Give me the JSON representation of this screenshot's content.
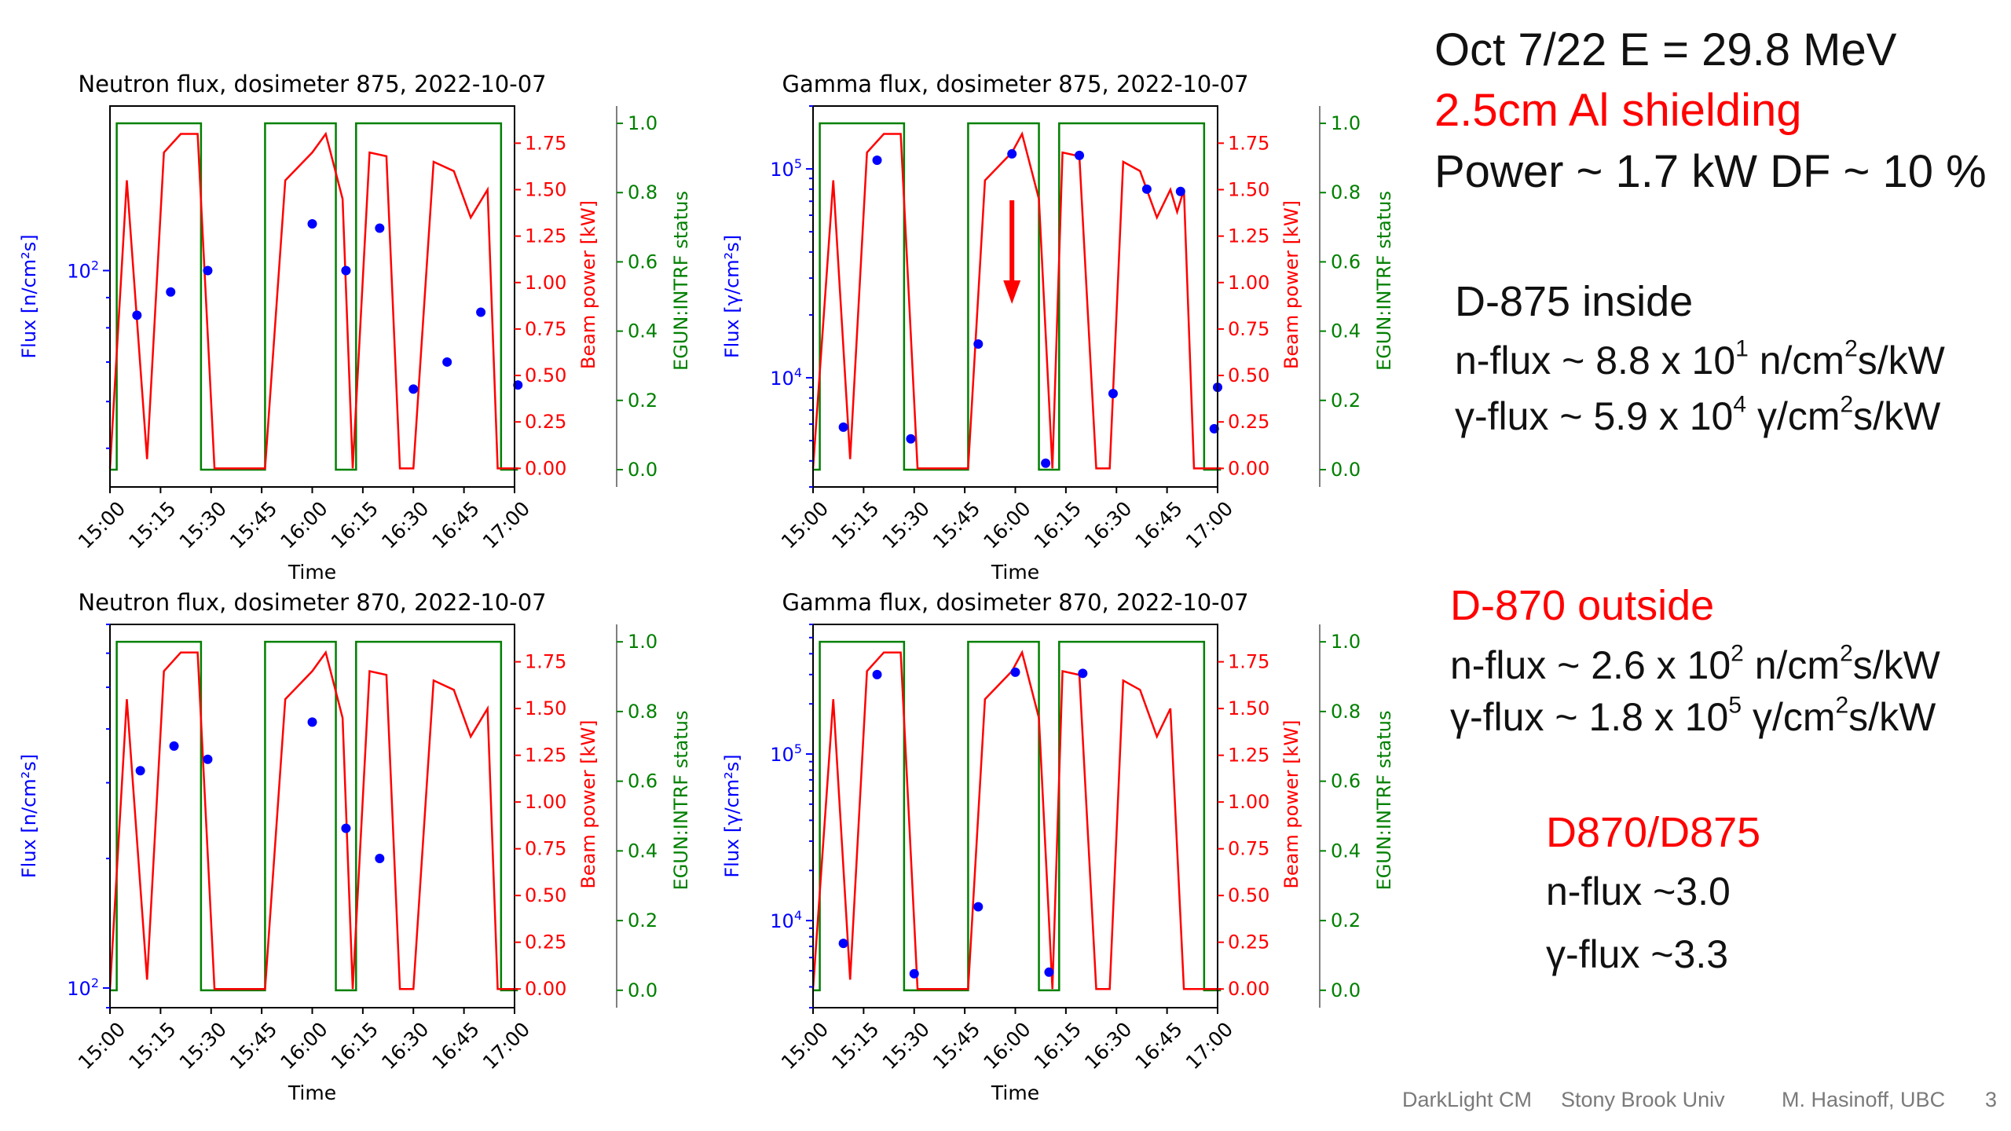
{
  "slide": {
    "header": {
      "date_energy": "Oct 7/22  E = 29.8 MeV",
      "shielding": "2.5cm Al shielding",
      "power_df": "Power ~ 1.7 kW   DF ~ 10 %"
    },
    "d875": {
      "heading": "D-875   inside",
      "n_flux": {
        "pre": "n-flux ~ 8.8 x 10",
        "exp": "1",
        "mid": " n/cm",
        "exp2": "2",
        "post": "s/kW"
      },
      "g_flux": {
        "pre": "γ-flux ~ 5.9 x 10",
        "exp": "4",
        "mid": " γ/cm",
        "exp2": "2",
        "post": "s/kW"
      }
    },
    "d870": {
      "heading": "D-870  outside",
      "n_flux": {
        "pre": "n-flux ~ 2.6 x 10",
        "exp": "2",
        "mid": " n/cm",
        "exp2": "2",
        "post": "s/kW"
      },
      "g_flux": {
        "pre": "γ-flux ~ 1.8 x 10",
        "exp": "5",
        "mid": " γ/cm",
        "exp2": "2",
        "post": "s/kW"
      }
    },
    "ratio": {
      "heading": "D870/D875",
      "n_flux": "n-flux ~3.0",
      "g_flux": "γ-flux ~3.3"
    },
    "footer": {
      "event": "DarkLight CM",
      "venue": "Stony Brook Univ",
      "author": "M. Hasinoff, UBC",
      "page": "3"
    },
    "colors": {
      "flux": "#0000ff",
      "power": "#ff0000",
      "status": "#008000",
      "accent": "#ff0000"
    }
  },
  "chart_data": [
    {
      "type": "line",
      "title": "Neutron flux, dosimeter 875, 2022-10-07",
      "xlabel": "Time",
      "ylabel_left": "Flux [n/cm²s]",
      "ylabel_right1": "Beam power [kW]",
      "ylabel_right2": "EGUN:INTRF status",
      "x_ticks": [
        "15:00",
        "15:15",
        "15:30",
        "15:45",
        "16:00",
        "16:15",
        "16:30",
        "16:45",
        "17:00"
      ],
      "y_left_log": true,
      "y_left_range": [
        43,
        190
      ],
      "y_left_ticks": [
        {
          "value": 100,
          "base": "10",
          "exp": "2"
        }
      ],
      "y_power_range": [
        -0.1,
        1.95
      ],
      "y_power_ticks": [
        "0.00",
        "0.25",
        "0.50",
        "0.75",
        "1.00",
        "1.25",
        "1.50",
        "1.75"
      ],
      "y_status_range": [
        -0.05,
        1.05
      ],
      "y_status_ticks": [
        "0.0",
        "0.2",
        "0.4",
        "0.6",
        "0.8",
        "1.0"
      ],
      "series": [
        {
          "name": "Flux",
          "kind": "scatter",
          "x": [
            8,
            18,
            29,
            60,
            70,
            80,
            90,
            100,
            110,
            121
          ],
          "y": [
            84,
            92,
            100,
            120,
            100,
            118,
            63,
            70,
            85,
            64
          ]
        },
        {
          "name": "Beam power",
          "kind": "line",
          "x": [
            0,
            5,
            11,
            16,
            21,
            26,
            31,
            46,
            52,
            60,
            64,
            69,
            72,
            77,
            82,
            86,
            90,
            96,
            102,
            107,
            112,
            115,
            118,
            121
          ],
          "y": [
            0.0,
            1.55,
            0.05,
            1.7,
            1.8,
            1.8,
            0.0,
            0.0,
            1.55,
            1.7,
            1.8,
            1.45,
            0.0,
            1.7,
            1.68,
            0.0,
            0.0,
            1.65,
            1.6,
            1.35,
            1.5,
            0.0,
            0.0,
            0.0
          ]
        },
        {
          "name": "EGUN:INTRF status",
          "kind": "step",
          "x": [
            0,
            2,
            2,
            27,
            27,
            46,
            46,
            67,
            67,
            73,
            73,
            116,
            116,
            121
          ],
          "y": [
            0,
            0,
            1,
            1,
            0,
            0,
            1,
            1,
            0,
            0,
            1,
            1,
            0,
            0
          ]
        }
      ]
    },
    {
      "type": "line",
      "title": "Gamma flux, dosimeter 875, 2022-10-07",
      "xlabel": "Time",
      "ylabel_left": "Flux [γ/cm²s]",
      "ylabel_right1": "Beam power [kW]",
      "ylabel_right2": "EGUN:INTRF status",
      "x_ticks": [
        "15:00",
        "15:15",
        "15:30",
        "15:45",
        "16:00",
        "16:15",
        "16:30",
        "16:45",
        "17:00"
      ],
      "y_left_log": true,
      "y_left_range": [
        3000,
        200000
      ],
      "y_left_ticks": [
        {
          "value": 10000,
          "base": "10",
          "exp": "4"
        },
        {
          "value": 100000,
          "base": "10",
          "exp": "5"
        }
      ],
      "y_power_range": [
        -0.1,
        1.95
      ],
      "y_power_ticks": [
        "0.00",
        "0.25",
        "0.50",
        "0.75",
        "1.00",
        "1.25",
        "1.50",
        "1.75"
      ],
      "y_status_range": [
        -0.05,
        1.05
      ],
      "y_status_ticks": [
        "0.0",
        "0.2",
        "0.4",
        "0.6",
        "0.8",
        "1.0"
      ],
      "annotation": "red down arrow at 16:00",
      "series": [
        {
          "name": "Flux",
          "kind": "scatter",
          "x": [
            9,
            19,
            29,
            49,
            59,
            69,
            79,
            89,
            99,
            109,
            119,
            120
          ],
          "y": [
            5800,
            110000,
            5100,
            14500,
            118000,
            3900,
            116000,
            8400,
            80000,
            78000,
            5700,
            9000
          ]
        },
        {
          "name": "Beam power",
          "kind": "line",
          "x": [
            0,
            6,
            11,
            16,
            21,
            26,
            31,
            46,
            51,
            59,
            62,
            67,
            71,
            74,
            79,
            84,
            88,
            92,
            97,
            102,
            106,
            108,
            110,
            113,
            117,
            121
          ],
          "y": [
            0.0,
            1.55,
            0.05,
            1.7,
            1.8,
            1.8,
            0.0,
            0.0,
            1.55,
            1.7,
            1.8,
            1.45,
            0.0,
            1.7,
            1.68,
            0.0,
            0.0,
            1.65,
            1.6,
            1.35,
            1.5,
            1.38,
            1.5,
            0.0,
            0.0,
            0.0
          ]
        },
        {
          "name": "EGUN:INTRF status",
          "kind": "step",
          "x": [
            0,
            2,
            2,
            27,
            27,
            46,
            46,
            67,
            67,
            73,
            73,
            116,
            116,
            121
          ],
          "y": [
            0,
            0,
            1,
            1,
            0,
            0,
            1,
            1,
            0,
            0,
            1,
            1,
            0,
            0
          ]
        }
      ]
    },
    {
      "type": "line",
      "title": "Neutron flux, dosimeter 870, 2022-10-07",
      "xlabel": "Time",
      "ylabel_left": "Flux [n/cm²s]",
      "ylabel_right1": "Beam power [kW]",
      "ylabel_right2": "EGUN:INTRF status",
      "x_ticks": [
        "15:00",
        "15:15",
        "15:30",
        "15:45",
        "16:00",
        "16:15",
        "16:30",
        "16:45",
        "17:00"
      ],
      "y_left_log": true,
      "y_left_range": [
        90,
        700
      ],
      "y_left_ticks": [
        {
          "value": 100,
          "base": "10",
          "exp": "2"
        }
      ],
      "y_power_range": [
        -0.1,
        1.95
      ],
      "y_power_ticks": [
        "0.00",
        "0.25",
        "0.50",
        "0.75",
        "1.00",
        "1.25",
        "1.50",
        "1.75"
      ],
      "y_status_range": [
        -0.05,
        1.05
      ],
      "y_status_ticks": [
        "0.0",
        "0.2",
        "0.4",
        "0.6",
        "0.8",
        "1.0"
      ],
      "series": [
        {
          "name": "Flux",
          "kind": "scatter",
          "x": [
            9,
            19,
            29,
            60,
            70,
            80
          ],
          "y": [
            320,
            365,
            340,
            415,
            235,
            200
          ]
        },
        {
          "name": "Beam power",
          "kind": "line",
          "x": [
            0,
            5,
            11,
            16,
            21,
            26,
            31,
            46,
            52,
            60,
            64,
            69,
            72,
            77,
            82,
            86,
            90,
            96,
            102,
            107,
            112,
            115,
            118,
            121
          ],
          "y": [
            0.0,
            1.55,
            0.05,
            1.7,
            1.8,
            1.8,
            0.0,
            0.0,
            1.55,
            1.7,
            1.8,
            1.45,
            0.0,
            1.7,
            1.68,
            0.0,
            0.0,
            1.65,
            1.6,
            1.35,
            1.5,
            0.0,
            0.0,
            0.0
          ]
        },
        {
          "name": "EGUN:INTRF status",
          "kind": "step",
          "x": [
            0,
            2,
            2,
            27,
            27,
            46,
            46,
            67,
            67,
            73,
            73,
            116,
            116,
            121
          ],
          "y": [
            0,
            0,
            1,
            1,
            0,
            0,
            1,
            1,
            0,
            0,
            1,
            1,
            0,
            0
          ]
        }
      ]
    },
    {
      "type": "line",
      "title": "Gamma flux, dosimeter 870, 2022-10-07",
      "xlabel": "Time",
      "ylabel_left": "Flux [γ/cm²s]",
      "ylabel_right1": "Beam power [kW]",
      "ylabel_right2": "EGUN:INTRF status",
      "x_ticks": [
        "15:00",
        "15:15",
        "15:30",
        "15:45",
        "16:00",
        "16:15",
        "16:30",
        "16:45",
        "17:00"
      ],
      "y_left_log": true,
      "y_left_range": [
        3000,
        600000
      ],
      "y_left_ticks": [
        {
          "value": 10000,
          "base": "10",
          "exp": "4"
        },
        {
          "value": 100000,
          "base": "10",
          "exp": "5"
        }
      ],
      "y_power_range": [
        -0.1,
        1.95
      ],
      "y_power_ticks": [
        "0.00",
        "0.25",
        "0.50",
        "0.75",
        "1.00",
        "1.25",
        "1.50",
        "1.75"
      ],
      "y_status_range": [
        -0.05,
        1.05
      ],
      "y_status_ticks": [
        "0.0",
        "0.2",
        "0.4",
        "0.6",
        "0.8",
        "1.0"
      ],
      "series": [
        {
          "name": "Flux",
          "kind": "scatter",
          "x": [
            9,
            19,
            30,
            49,
            60,
            70,
            80
          ],
          "y": [
            7300,
            300000,
            4800,
            12100,
            310000,
            4900,
            305000
          ]
        },
        {
          "name": "Beam power",
          "kind": "line",
          "x": [
            0,
            6,
            11,
            16,
            21,
            26,
            31,
            46,
            51,
            59,
            62,
            67,
            71,
            74,
            79,
            84,
            88,
            92,
            97,
            102,
            106,
            110,
            113,
            117,
            121
          ],
          "y": [
            0.0,
            1.55,
            0.05,
            1.7,
            1.8,
            1.8,
            0.0,
            0.0,
            1.55,
            1.7,
            1.8,
            1.45,
            0.0,
            1.7,
            1.68,
            0.0,
            0.0,
            1.65,
            1.6,
            1.35,
            1.5,
            0.0,
            0.0,
            0.0,
            0.0
          ]
        },
        {
          "name": "EGUN:INTRF status",
          "kind": "step",
          "x": [
            0,
            2,
            2,
            27,
            27,
            46,
            46,
            67,
            67,
            73,
            73,
            116,
            116,
            121
          ],
          "y": [
            0,
            0,
            1,
            1,
            0,
            0,
            1,
            1,
            0,
            0,
            1,
            1,
            0,
            0
          ]
        }
      ]
    }
  ]
}
